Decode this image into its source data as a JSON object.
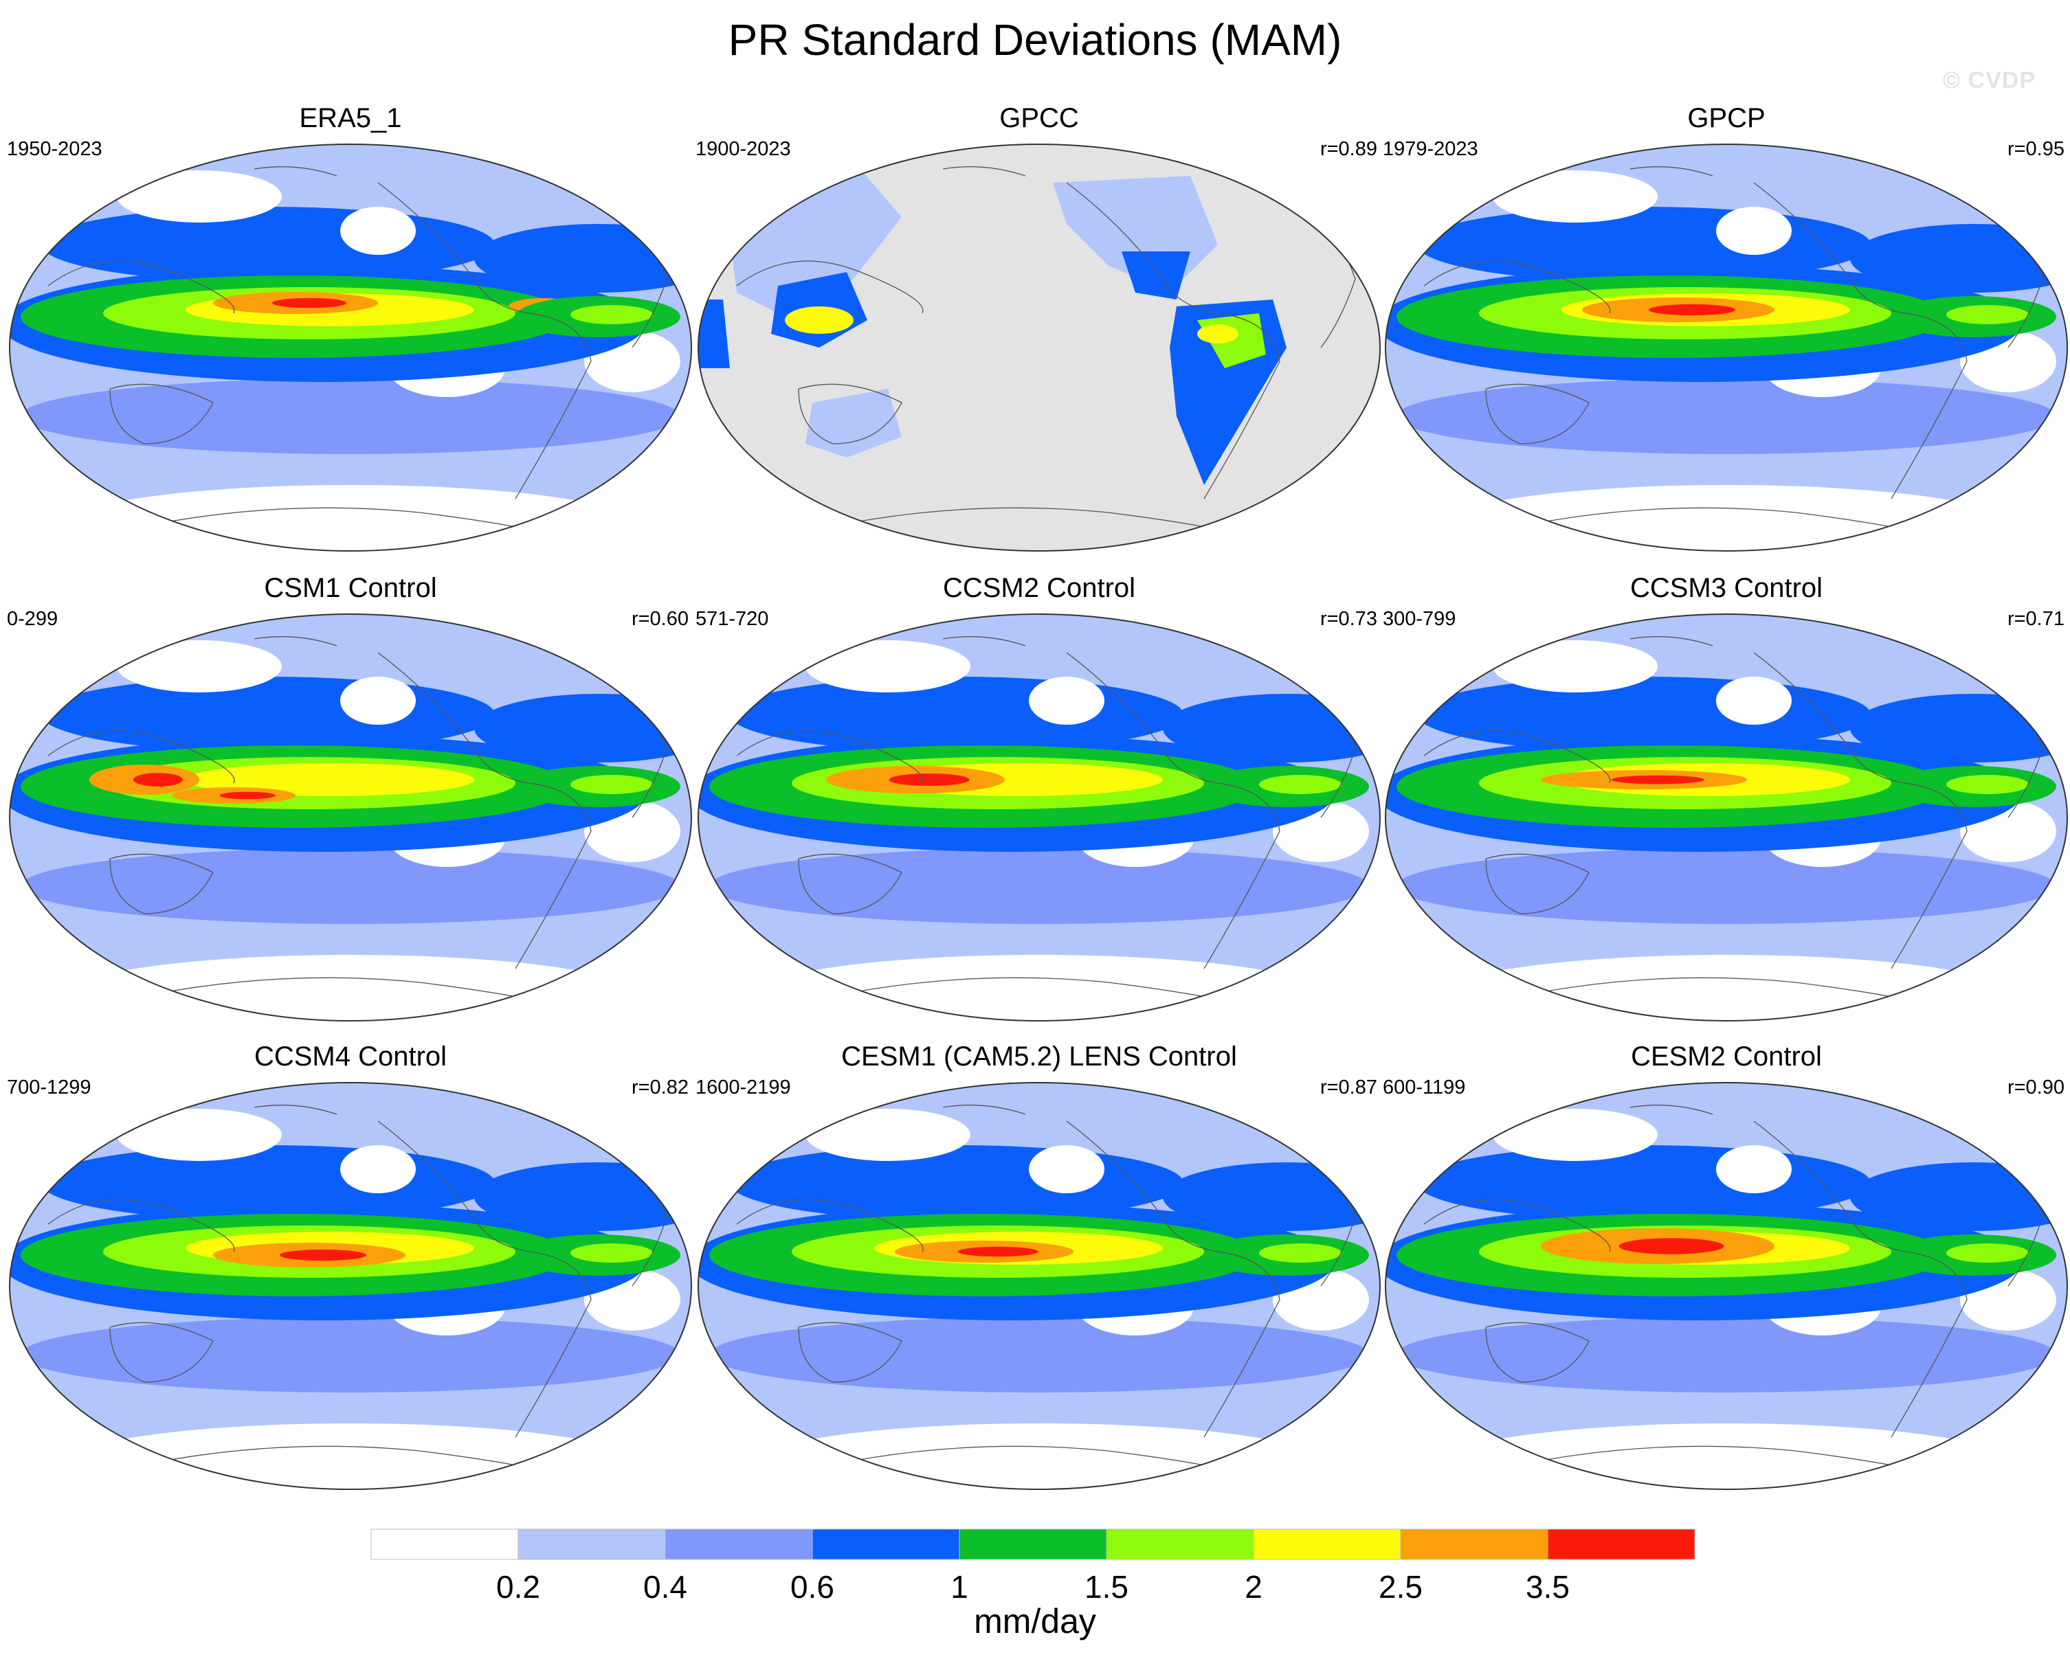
{
  "figure": {
    "title": "PR Standard Deviations (MAM)",
    "watermark": "© CVDP"
  },
  "panels": [
    {
      "title": "ERA5_1",
      "period": "1950-2023",
      "corr": "",
      "type": "reanalysis",
      "land_only": false
    },
    {
      "title": "GPCC",
      "period": "1900-2023",
      "corr": "r=0.89",
      "type": "obs",
      "land_only": true
    },
    {
      "title": "GPCP",
      "period": "1979-2023",
      "corr": "r=0.95",
      "type": "obs",
      "land_only": false
    },
    {
      "title": "CSM1 Control",
      "period": "0-299",
      "corr": "r=0.60",
      "type": "model",
      "land_only": false
    },
    {
      "title": "CCSM2 Control",
      "period": "571-720",
      "corr": "r=0.73",
      "type": "model",
      "land_only": false
    },
    {
      "title": "CCSM3 Control",
      "period": "300-799",
      "corr": "r=0.71",
      "type": "model",
      "land_only": false
    },
    {
      "title": "CCSM4 Control",
      "period": "700-1299",
      "corr": "r=0.82",
      "type": "model",
      "land_only": false
    },
    {
      "title": "CESM1 (CAM5.2) LENS Control",
      "period": "1600-2199",
      "corr": "r=0.87",
      "type": "model",
      "land_only": false
    },
    {
      "title": "CESM2 Control",
      "period": "600-1199",
      "corr": "r=0.90",
      "type": "model",
      "land_only": false
    }
  ],
  "colorbar": {
    "units": "mm/day",
    "labels": [
      "0.2",
      "0.4",
      "0.6",
      "1",
      "1.5",
      "2",
      "2.5",
      "3.5"
    ],
    "colors": [
      "#ffffff",
      "#b3c6fb",
      "#8098fb",
      "#0a5efb",
      "#0abf2a",
      "#8dfb0a",
      "#fbfb0a",
      "#fba00a",
      "#fb1a0a"
    ]
  },
  "map": {
    "projection": "robinson-like, pacific-centered",
    "missing_color": "#e3e3e3"
  }
}
